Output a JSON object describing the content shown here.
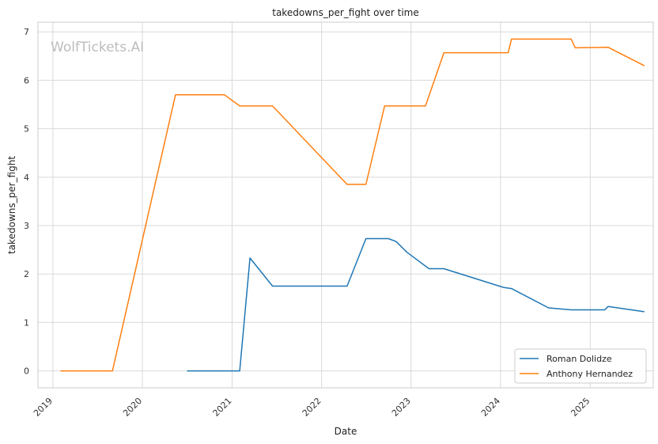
{
  "chart_data": {
    "type": "line",
    "title": "takedowns_per_fight over time",
    "xlabel": "Date",
    "ylabel": "takedowns_per_fight",
    "watermark": "WolfTickets.AI",
    "x_ticks": [
      "2019",
      "2020",
      "2021",
      "2022",
      "2023",
      "2024",
      "2025"
    ],
    "y_ticks": [
      "0",
      "1",
      "2",
      "3",
      "4",
      "5",
      "6",
      "7"
    ],
    "xlim": [
      "2018-11-01",
      "2025-09-15"
    ],
    "ylim": [
      -0.35,
      7.2
    ],
    "grid": true,
    "legend_position": "lower right",
    "series": [
      {
        "name": "Roman Dolidze",
        "color": "#1f77b4",
        "points": [
          [
            "2020-07-01",
            0.0
          ],
          [
            "2021-02-01",
            0.0
          ],
          [
            "2021-03-15",
            2.33
          ],
          [
            "2021-06-15",
            1.75
          ],
          [
            "2022-04-15",
            1.75
          ],
          [
            "2022-07-01",
            2.73
          ],
          [
            "2022-10-01",
            2.73
          ],
          [
            "2022-11-01",
            2.67
          ],
          [
            "2022-12-15",
            2.45
          ],
          [
            "2023-03-15",
            2.11
          ],
          [
            "2023-05-15",
            2.11
          ],
          [
            "2024-01-15",
            1.72
          ],
          [
            "2024-02-15",
            1.7
          ],
          [
            "2024-07-15",
            1.3
          ],
          [
            "2024-10-15",
            1.26
          ],
          [
            "2025-03-01",
            1.26
          ],
          [
            "2025-03-15",
            1.33
          ],
          [
            "2025-08-10",
            1.22
          ]
        ]
      },
      {
        "name": "Anthony Hernandez",
        "color": "#ff7f0e",
        "points": [
          [
            "2019-02-01",
            0.0
          ],
          [
            "2019-09-01",
            0.0
          ],
          [
            "2020-05-15",
            5.7
          ],
          [
            "2020-12-01",
            5.7
          ],
          [
            "2021-02-01",
            5.47
          ],
          [
            "2021-06-15",
            5.47
          ],
          [
            "2022-04-15",
            3.85
          ],
          [
            "2022-07-01",
            3.85
          ],
          [
            "2022-09-15",
            5.47
          ],
          [
            "2023-03-01",
            5.47
          ],
          [
            "2023-05-15",
            6.57
          ],
          [
            "2024-02-01",
            6.57
          ],
          [
            "2024-02-15",
            6.85
          ],
          [
            "2024-10-15",
            6.85
          ],
          [
            "2024-11-01",
            6.67
          ],
          [
            "2025-03-15",
            6.68
          ],
          [
            "2025-08-10",
            6.3
          ]
        ]
      }
    ]
  }
}
